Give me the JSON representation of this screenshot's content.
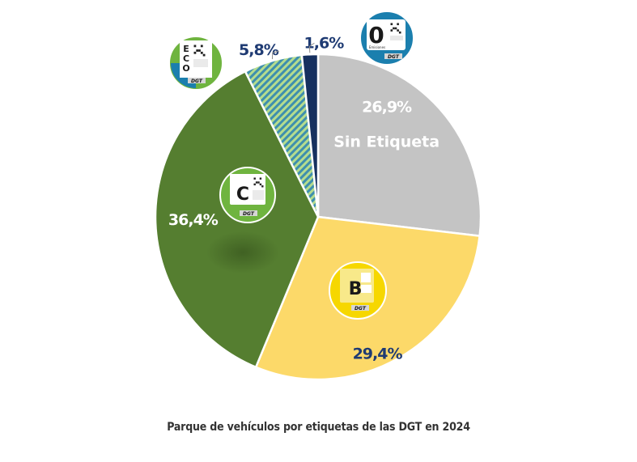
{
  "caption": "Parque de vehículos por etiquetas de las DGT en 2024",
  "colors": {
    "sin_etiqueta": "#c4c4c4",
    "b": "#fcd969",
    "c": "#557e30",
    "eco_stripe_a": "#3e8fae",
    "eco_stripe_b": "#b5dc8e",
    "cero": "#16305f",
    "label_dark": "#1f3b73",
    "label_white": "#ffffff",
    "sticker_blue": "#1b7fae",
    "sticker_green": "#6fb43f",
    "sticker_yellow": "#f6d700",
    "sticker_gray": "#b8b8b8"
  },
  "chart_data": {
    "type": "pie",
    "title": "Parque de vehículos por etiquetas de las DGT en 2024",
    "categories": [
      "Sin Etiqueta",
      "B",
      "C",
      "ECO",
      "0"
    ],
    "values": [
      26.9,
      29.4,
      36.4,
      5.8,
      1.6
    ],
    "value_labels": [
      "26,9%",
      "29,4%",
      "36,4%",
      "5,8%",
      "1,6%"
    ],
    "slice_text": [
      "Sin Etiqueta"
    ],
    "badges": {
      "cero": {
        "letter": "0",
        "small": "Emisiones",
        "code": "DGT"
      },
      "eco": {
        "letters": [
          "E",
          "C",
          "O"
        ],
        "code": "DGT"
      },
      "c": {
        "letter": "C",
        "code": "DGT"
      },
      "b": {
        "letter": "B",
        "code": "DGT"
      }
    }
  }
}
